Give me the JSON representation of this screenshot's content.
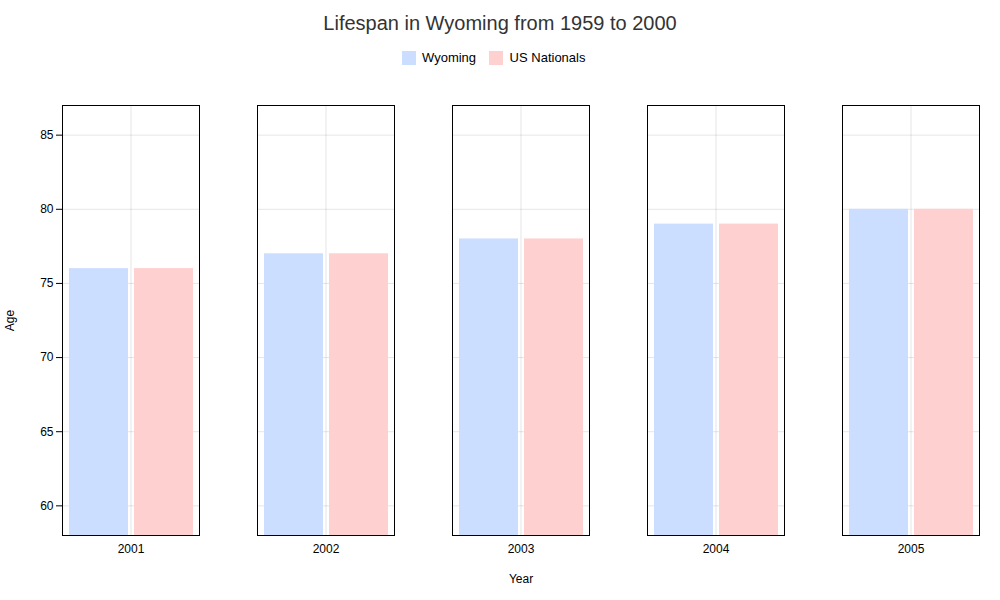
{
  "chart_data": {
    "type": "bar",
    "title": "Lifespan in Wyoming from 1959 to 2000",
    "xlabel": "Year",
    "ylabel": "Age",
    "categories": [
      "2001",
      "2002",
      "2003",
      "2004",
      "2005"
    ],
    "series": [
      {
        "name": "Wyoming",
        "color": "#ccdeff",
        "values": [
          76.0,
          77.0,
          78.0,
          79.0,
          80.0
        ]
      },
      {
        "name": "US Nationals",
        "color": "#ffd0d0",
        "values": [
          76.0,
          77.0,
          78.0,
          79.0,
          80.0
        ]
      }
    ],
    "ylim": [
      58,
      87
    ],
    "yticks": [
      60,
      65,
      70,
      75,
      80,
      85
    ],
    "grid": true,
    "legend": "top"
  }
}
